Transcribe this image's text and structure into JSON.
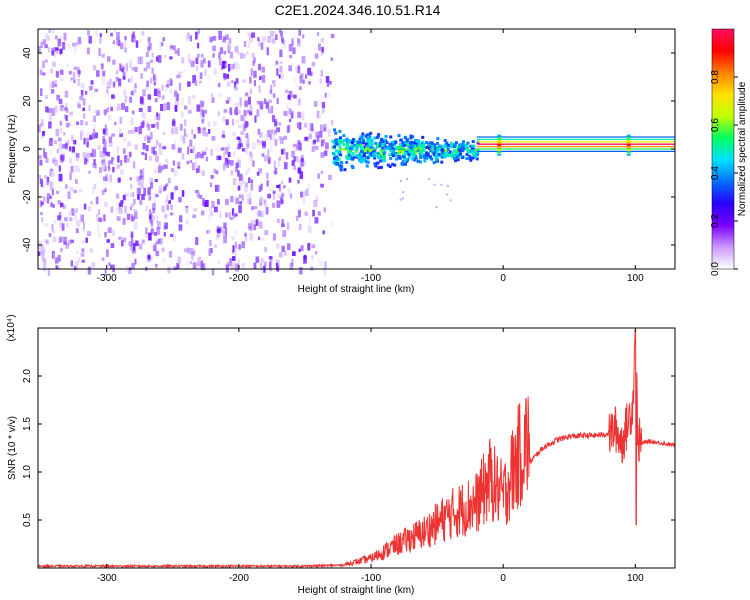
{
  "title": "C2E1.2024.346.10.51.R14",
  "chart_data": [
    {
      "type": "heatmap",
      "xlabel": "Height of straight line (km)",
      "ylabel": "Frequency (Hz)",
      "xlim": [
        -352,
        130
      ],
      "ylim": [
        -50,
        50
      ],
      "xticks": [
        -300,
        -200,
        -100,
        0,
        100
      ],
      "yticks": [
        -40,
        -20,
        0,
        20,
        40
      ],
      "colorbar": {
        "label": "Normalized spectral amplitude",
        "range": [
          0,
          1
        ],
        "ticks": [
          "0.0",
          "0.2",
          "0.4",
          "0.6",
          "0.8"
        ],
        "tick_values": [
          0,
          0.2,
          0.4,
          0.6,
          0.8
        ],
        "colormap": [
          "#ffffff",
          "#cc99ff",
          "#7a00ff",
          "#2a00ff",
          "#0070ff",
          "#00e0ff",
          "#00ff60",
          "#c0ff00",
          "#ffe000",
          "#ff8000",
          "#ff0000",
          "#ff1060"
        ]
      },
      "regions": [
        {
          "x": [
            -352,
            -130
          ],
          "freq_spread": 50,
          "amplitude": [
            0.05,
            0.3
          ],
          "note_color": "#7a2bff"
        },
        {
          "x": [
            -130,
            -20
          ],
          "freq_spread": 10,
          "amplitude": [
            0.3,
            0.65
          ]
        },
        {
          "x": [
            -20,
            130
          ],
          "freq_center": 2,
          "amplitude": [
            0.6,
            1.0
          ]
        }
      ]
    },
    {
      "type": "line",
      "xlabel": "Height of straight line (km)",
      "ylabel": "SNR (10 * v/v)",
      "y_multiplier": "(x10⁴)",
      "xlim": [
        -352,
        130
      ],
      "ylim": [
        0,
        2.5
      ],
      "xticks": [
        -300,
        -200,
        -100,
        0,
        100
      ],
      "yticks": [
        0.5,
        1.0,
        1.5,
        2.0
      ],
      "ytick_labels": [
        "0.5",
        "1.0",
        "1.5",
        "2.0"
      ],
      "color": "#ee3333",
      "x": [
        -352,
        -300,
        -250,
        -200,
        -150,
        -120,
        -100,
        -80,
        -60,
        -40,
        -20,
        -10,
        0,
        10,
        20,
        30,
        40,
        50,
        60,
        70,
        80,
        85,
        90,
        95,
        98,
        100,
        102,
        105,
        110,
        120,
        130
      ],
      "y": [
        0.02,
        0.02,
        0.02,
        0.02,
        0.02,
        0.03,
        0.08,
        0.2,
        0.3,
        0.45,
        0.55,
        0.75,
        0.6,
        0.9,
        1.1,
        1.25,
        1.33,
        1.37,
        1.38,
        1.38,
        1.4,
        1.45,
        1.3,
        1.55,
        1.7,
        2.45,
        1.33,
        1.3,
        1.32,
        1.3,
        1.28
      ]
    }
  ]
}
